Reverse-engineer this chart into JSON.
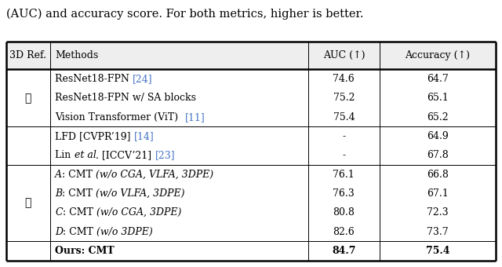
{
  "title_text": "(AUC) and accuracy score. For both metrics, higher is better.",
  "header": [
    "3D Ref.",
    "Methods",
    "AUC (↑)",
    "Accuracy (↑)"
  ],
  "rows": [
    {
      "ref": "✗",
      "group": 0,
      "method_parts": [
        {
          "text": "ResNet18-FPN ",
          "style": "normal"
        },
        {
          "text": "[24]",
          "style": "cite"
        }
      ],
      "auc": "74.6",
      "acc": "64.7",
      "bold": false
    },
    {
      "ref": "",
      "group": 0,
      "method_parts": [
        {
          "text": "ResNet18-FPN w/ SA blocks",
          "style": "normal"
        }
      ],
      "auc": "75.2",
      "acc": "65.1",
      "bold": false
    },
    {
      "ref": "",
      "group": 0,
      "method_parts": [
        {
          "text": "Vision Transformer (ViT)  ",
          "style": "normal"
        },
        {
          "text": "[11]",
          "style": "cite"
        }
      ],
      "auc": "75.4",
      "acc": "65.2",
      "bold": false
    },
    {
      "ref": "",
      "group": 1,
      "method_parts": [
        {
          "text": "LFD [CVPR’19] ",
          "style": "normal"
        },
        {
          "text": "[14]",
          "style": "cite"
        }
      ],
      "auc": "-",
      "acc": "64.9",
      "bold": false
    },
    {
      "ref": "",
      "group": 1,
      "method_parts": [
        {
          "text": "Lin ",
          "style": "normal"
        },
        {
          "text": "et al",
          "style": "italic"
        },
        {
          "text": ". [ICCV’21] ",
          "style": "normal"
        },
        {
          "text": "[23]",
          "style": "cite"
        }
      ],
      "auc": "-",
      "acc": "67.8",
      "bold": false
    },
    {
      "ref": "✓",
      "group": 2,
      "method_parts": [
        {
          "text": "A",
          "style": "italic_label"
        },
        {
          "text": ": CMT ",
          "style": "normal"
        },
        {
          "text": "(w/o CGA, VLFA, 3DPE)",
          "style": "italic"
        }
      ],
      "auc": "76.1",
      "acc": "66.8",
      "bold": false
    },
    {
      "ref": "",
      "group": 2,
      "method_parts": [
        {
          "text": "B",
          "style": "italic_label"
        },
        {
          "text": ": CMT ",
          "style": "normal"
        },
        {
          "text": "(w/o VLFA, 3DPE)",
          "style": "italic"
        }
      ],
      "auc": "76.3",
      "acc": "67.1",
      "bold": false
    },
    {
      "ref": "",
      "group": 2,
      "method_parts": [
        {
          "text": "C",
          "style": "italic_label"
        },
        {
          "text": ": CMT ",
          "style": "normal"
        },
        {
          "text": "(w/o CGA, 3DPE)",
          "style": "italic"
        }
      ],
      "auc": "80.8",
      "acc": "72.3",
      "bold": false
    },
    {
      "ref": "",
      "group": 2,
      "method_parts": [
        {
          "text": "D",
          "style": "italic_label"
        },
        {
          "text": ": CMT ",
          "style": "normal"
        },
        {
          "text": "(w/o 3DPE)",
          "style": "italic"
        }
      ],
      "auc": "82.6",
      "acc": "73.7",
      "bold": false
    },
    {
      "ref": "",
      "group": 3,
      "method_parts": [
        {
          "text": "Ours: CMT",
          "style": "bold"
        }
      ],
      "auc": "84.7",
      "acc": "75.4",
      "bold": true
    }
  ],
  "cite_color": "#4472C4",
  "bg_color": "#FFFFFF",
  "thick_lw": 1.8,
  "thin_lw": 0.7,
  "font_size": 9.0,
  "title_font_size": 10.5
}
